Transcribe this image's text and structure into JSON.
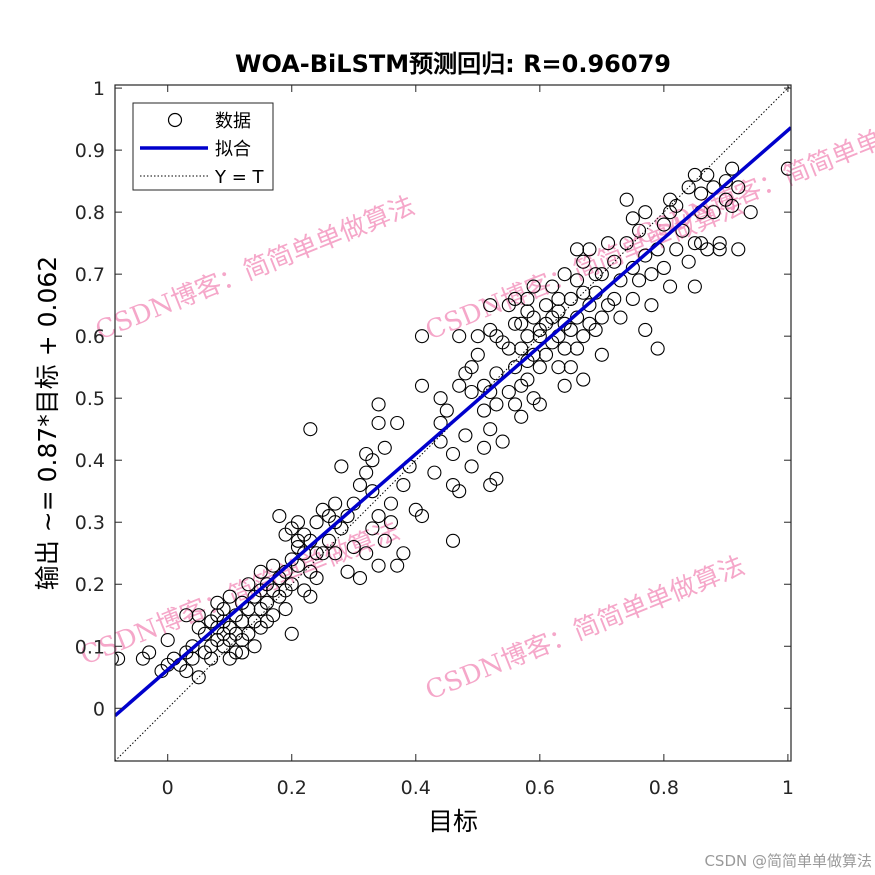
{
  "chart_data": {
    "type": "scatter",
    "title": "WOA-BiLSTM预测回归: R=0.96079",
    "xlabel": "目标",
    "ylabel": "输出 ~= 0.87*目标 + 0.062",
    "xlim": [
      -0.085,
      1.005
    ],
    "ylim": [
      -0.085,
      1.005
    ],
    "xticks": [
      0,
      0.2,
      0.4,
      0.6,
      0.8,
      1
    ],
    "yticks": [
      0,
      0.1,
      0.2,
      0.3,
      0.4,
      0.5,
      0.6,
      0.7,
      0.8,
      0.9,
      1
    ],
    "xtick_labels": [
      "0",
      "0.2",
      "0.4",
      "0.6",
      "0.8",
      "1"
    ],
    "ytick_labels": [
      "0",
      "0.1",
      "0.2",
      "0.3",
      "0.4",
      "0.5",
      "0.6",
      "0.7",
      "0.8",
      "0.9",
      "1"
    ],
    "grid": false,
    "legend_position": "top-left",
    "legend": [
      {
        "label": "数据",
        "marker": "circle"
      },
      {
        "label": "拟合",
        "marker": "solid-line"
      },
      {
        "label": "Y = T",
        "marker": "dotted-line"
      }
    ],
    "fit": {
      "slope": 0.87,
      "intercept": 0.062,
      "color": "#0000cc"
    },
    "identity_line": {
      "slope": 1,
      "intercept": 0,
      "color": "#000000"
    },
    "marker_color": "#000000",
    "points": [
      [
        -0.09,
        0.08
      ],
      [
        -0.08,
        0.08
      ],
      [
        -0.04,
        0.08
      ],
      [
        -0.03,
        0.09
      ],
      [
        -0.01,
        0.06
      ],
      [
        0.0,
        0.07
      ],
      [
        0.0,
        0.11
      ],
      [
        0.01,
        0.08
      ],
      [
        0.02,
        0.07
      ],
      [
        0.03,
        0.06
      ],
      [
        0.03,
        0.09
      ],
      [
        0.03,
        0.15
      ],
      [
        0.04,
        0.08
      ],
      [
        0.04,
        0.1
      ],
      [
        0.05,
        0.05
      ],
      [
        0.05,
        0.13
      ],
      [
        0.05,
        0.15
      ],
      [
        0.06,
        0.12
      ],
      [
        0.07,
        0.08
      ],
      [
        0.07,
        0.1
      ],
      [
        0.08,
        0.11
      ],
      [
        0.08,
        0.13
      ],
      [
        0.08,
        0.15
      ],
      [
        0.08,
        0.17
      ],
      [
        0.09,
        0.1
      ],
      [
        0.09,
        0.12
      ],
      [
        0.09,
        0.14
      ],
      [
        0.09,
        0.16
      ],
      [
        0.1,
        0.08
      ],
      [
        0.1,
        0.11
      ],
      [
        0.1,
        0.13
      ],
      [
        0.1,
        0.18
      ],
      [
        0.11,
        0.09
      ],
      [
        0.11,
        0.12
      ],
      [
        0.11,
        0.15
      ],
      [
        0.12,
        0.09
      ],
      [
        0.12,
        0.11
      ],
      [
        0.12,
        0.14
      ],
      [
        0.12,
        0.17
      ],
      [
        0.13,
        0.12
      ],
      [
        0.13,
        0.16
      ],
      [
        0.13,
        0.2
      ],
      [
        0.14,
        0.1
      ],
      [
        0.14,
        0.14
      ],
      [
        0.14,
        0.18
      ],
      [
        0.15,
        0.13
      ],
      [
        0.15,
        0.16
      ],
      [
        0.15,
        0.22
      ],
      [
        0.16,
        0.14
      ],
      [
        0.16,
        0.17
      ],
      [
        0.16,
        0.2
      ],
      [
        0.17,
        0.15
      ],
      [
        0.17,
        0.19
      ],
      [
        0.17,
        0.23
      ],
      [
        0.18,
        0.18
      ],
      [
        0.18,
        0.21
      ],
      [
        0.18,
        0.31
      ],
      [
        0.19,
        0.16
      ],
      [
        0.19,
        0.19
      ],
      [
        0.19,
        0.22
      ],
      [
        0.19,
        0.28
      ],
      [
        0.2,
        0.12
      ],
      [
        0.2,
        0.2
      ],
      [
        0.2,
        0.24
      ],
      [
        0.2,
        0.29
      ],
      [
        0.21,
        0.23
      ],
      [
        0.21,
        0.26
      ],
      [
        0.21,
        0.3
      ],
      [
        0.22,
        0.19
      ],
      [
        0.22,
        0.25
      ],
      [
        0.22,
        0.28
      ],
      [
        0.23,
        0.45
      ],
      [
        0.23,
        0.18
      ],
      [
        0.23,
        0.22
      ],
      [
        0.23,
        0.27
      ],
      [
        0.24,
        0.21
      ],
      [
        0.24,
        0.3
      ],
      [
        0.25,
        0.25
      ],
      [
        0.25,
        0.32
      ],
      [
        0.26,
        0.27
      ],
      [
        0.27,
        0.25
      ],
      [
        0.27,
        0.3
      ],
      [
        0.28,
        0.39
      ],
      [
        0.28,
        0.29
      ],
      [
        0.29,
        0.22
      ],
      [
        0.3,
        0.26
      ],
      [
        0.3,
        0.33
      ],
      [
        0.31,
        0.21
      ],
      [
        0.31,
        0.36
      ],
      [
        0.32,
        0.25
      ],
      [
        0.32,
        0.38
      ],
      [
        0.32,
        0.41
      ],
      [
        0.33,
        0.29
      ],
      [
        0.33,
        0.35
      ],
      [
        0.33,
        0.4
      ],
      [
        0.34,
        0.23
      ],
      [
        0.34,
        0.31
      ],
      [
        0.34,
        0.46
      ],
      [
        0.34,
        0.49
      ],
      [
        0.35,
        0.27
      ],
      [
        0.35,
        0.42
      ],
      [
        0.36,
        0.3
      ],
      [
        0.36,
        0.33
      ],
      [
        0.37,
        0.23
      ],
      [
        0.37,
        0.46
      ],
      [
        0.38,
        0.25
      ],
      [
        0.38,
        0.36
      ],
      [
        0.39,
        0.39
      ],
      [
        0.4,
        0.32
      ],
      [
        0.41,
        0.31
      ],
      [
        0.41,
        0.52
      ],
      [
        0.41,
        0.6
      ],
      [
        0.43,
        0.38
      ],
      [
        0.44,
        0.46
      ],
      [
        0.45,
        0.48
      ],
      [
        0.46,
        0.27
      ],
      [
        0.46,
        0.36
      ],
      [
        0.46,
        0.41
      ],
      [
        0.47,
        0.35
      ],
      [
        0.47,
        0.52
      ],
      [
        0.47,
        0.6
      ],
      [
        0.48,
        0.44
      ],
      [
        0.48,
        0.54
      ],
      [
        0.49,
        0.39
      ],
      [
        0.49,
        0.51
      ],
      [
        0.5,
        0.57
      ],
      [
        0.5,
        0.6
      ],
      [
        0.51,
        0.42
      ],
      [
        0.51,
        0.48
      ],
      [
        0.51,
        0.52
      ],
      [
        0.52,
        0.36
      ],
      [
        0.52,
        0.45
      ],
      [
        0.52,
        0.51
      ],
      [
        0.52,
        0.65
      ],
      [
        0.53,
        0.37
      ],
      [
        0.53,
        0.49
      ],
      [
        0.53,
        0.54
      ],
      [
        0.54,
        0.43
      ],
      [
        0.54,
        0.59
      ],
      [
        0.55,
        0.51
      ],
      [
        0.55,
        0.65
      ],
      [
        0.56,
        0.49
      ],
      [
        0.56,
        0.55
      ],
      [
        0.56,
        0.62
      ],
      [
        0.56,
        0.66
      ],
      [
        0.57,
        0.47
      ],
      [
        0.57,
        0.52
      ],
      [
        0.57,
        0.58
      ],
      [
        0.57,
        0.62
      ],
      [
        0.58,
        0.53
      ],
      [
        0.58,
        0.56
      ],
      [
        0.58,
        0.6
      ],
      [
        0.58,
        0.66
      ],
      [
        0.59,
        0.5
      ],
      [
        0.59,
        0.57
      ],
      [
        0.59,
        0.63
      ],
      [
        0.59,
        0.68
      ],
      [
        0.6,
        0.49
      ],
      [
        0.6,
        0.55
      ],
      [
        0.6,
        0.61
      ],
      [
        0.61,
        0.57
      ],
      [
        0.61,
        0.62
      ],
      [
        0.61,
        0.65
      ],
      [
        0.62,
        0.59
      ],
      [
        0.62,
        0.63
      ],
      [
        0.62,
        0.68
      ],
      [
        0.63,
        0.55
      ],
      [
        0.63,
        0.6
      ],
      [
        0.63,
        0.66
      ],
      [
        0.64,
        0.52
      ],
      [
        0.64,
        0.58
      ],
      [
        0.64,
        0.62
      ],
      [
        0.64,
        0.7
      ],
      [
        0.65,
        0.55
      ],
      [
        0.65,
        0.61
      ],
      [
        0.65,
        0.66
      ],
      [
        0.66,
        0.58
      ],
      [
        0.66,
        0.63
      ],
      [
        0.66,
        0.69
      ],
      [
        0.67,
        0.53
      ],
      [
        0.67,
        0.6
      ],
      [
        0.67,
        0.67
      ],
      [
        0.67,
        0.72
      ],
      [
        0.68,
        0.62
      ],
      [
        0.68,
        0.65
      ],
      [
        0.68,
        0.74
      ],
      [
        0.69,
        0.61
      ],
      [
        0.69,
        0.67
      ],
      [
        0.7,
        0.57
      ],
      [
        0.7,
        0.63
      ],
      [
        0.7,
        0.7
      ],
      [
        0.71,
        0.65
      ],
      [
        0.71,
        0.75
      ],
      [
        0.72,
        0.66
      ],
      [
        0.72,
        0.72
      ],
      [
        0.73,
        0.63
      ],
      [
        0.73,
        0.69
      ],
      [
        0.74,
        0.75
      ],
      [
        0.74,
        0.82
      ],
      [
        0.75,
        0.66
      ],
      [
        0.75,
        0.71
      ],
      [
        0.76,
        0.69
      ],
      [
        0.76,
        0.77
      ],
      [
        0.77,
        0.61
      ],
      [
        0.77,
        0.73
      ],
      [
        0.77,
        0.8
      ],
      [
        0.78,
        0.65
      ],
      [
        0.78,
        0.7
      ],
      [
        0.79,
        0.58
      ],
      [
        0.79,
        0.74
      ],
      [
        0.8,
        0.71
      ],
      [
        0.8,
        0.78
      ],
      [
        0.81,
        0.68
      ],
      [
        0.81,
        0.82
      ],
      [
        0.82,
        0.74
      ],
      [
        0.82,
        0.81
      ],
      [
        0.83,
        0.77
      ],
      [
        0.84,
        0.72
      ],
      [
        0.84,
        0.84
      ],
      [
        0.85,
        0.68
      ],
      [
        0.85,
        0.75
      ],
      [
        0.85,
        0.86
      ],
      [
        0.86,
        0.75
      ],
      [
        0.86,
        0.83
      ],
      [
        0.87,
        0.74
      ],
      [
        0.87,
        0.86
      ],
      [
        0.88,
        0.8
      ],
      [
        0.88,
        0.84
      ],
      [
        0.89,
        0.74
      ],
      [
        0.89,
        0.75
      ],
      [
        0.9,
        0.82
      ],
      [
        0.9,
        0.85
      ],
      [
        0.91,
        0.81
      ],
      [
        0.91,
        0.87
      ],
      [
        0.92,
        0.74
      ],
      [
        0.92,
        0.84
      ],
      [
        0.94,
        0.8
      ],
      [
        1.0,
        0.87
      ],
      [
        0.52,
        0.61
      ],
      [
        0.49,
        0.55
      ],
      [
        0.6,
        0.6
      ],
      [
        0.44,
        0.5
      ],
      [
        0.29,
        0.31
      ],
      [
        0.26,
        0.31
      ],
      [
        0.21,
        0.27
      ],
      [
        0.15,
        0.19
      ],
      [
        0.06,
        0.09
      ],
      [
        0.07,
        0.14
      ],
      [
        0.24,
        0.25
      ],
      [
        0.27,
        0.33
      ],
      [
        0.44,
        0.43
      ],
      [
        0.53,
        0.6
      ],
      [
        0.66,
        0.74
      ],
      [
        0.75,
        0.79
      ],
      [
        0.81,
        0.8
      ],
      [
        0.86,
        0.8
      ],
      [
        0.55,
        0.58
      ],
      [
        0.63,
        0.64
      ],
      [
        0.69,
        0.7
      ],
      [
        0.58,
        0.64
      ]
    ]
  },
  "watermarks": [
    {
      "text": "CSDN博客：简简单单做算法"
    },
    {
      "text": "CSDN博客：简简单单做算法"
    },
    {
      "text": "CSDN博客：简简单单做算法"
    },
    {
      "text": "CSDN博客：简简单单做算法"
    },
    {
      "text": "CSDN博客：简简单单做算法"
    }
  ],
  "credit": "CSDN @简简单单做算法"
}
